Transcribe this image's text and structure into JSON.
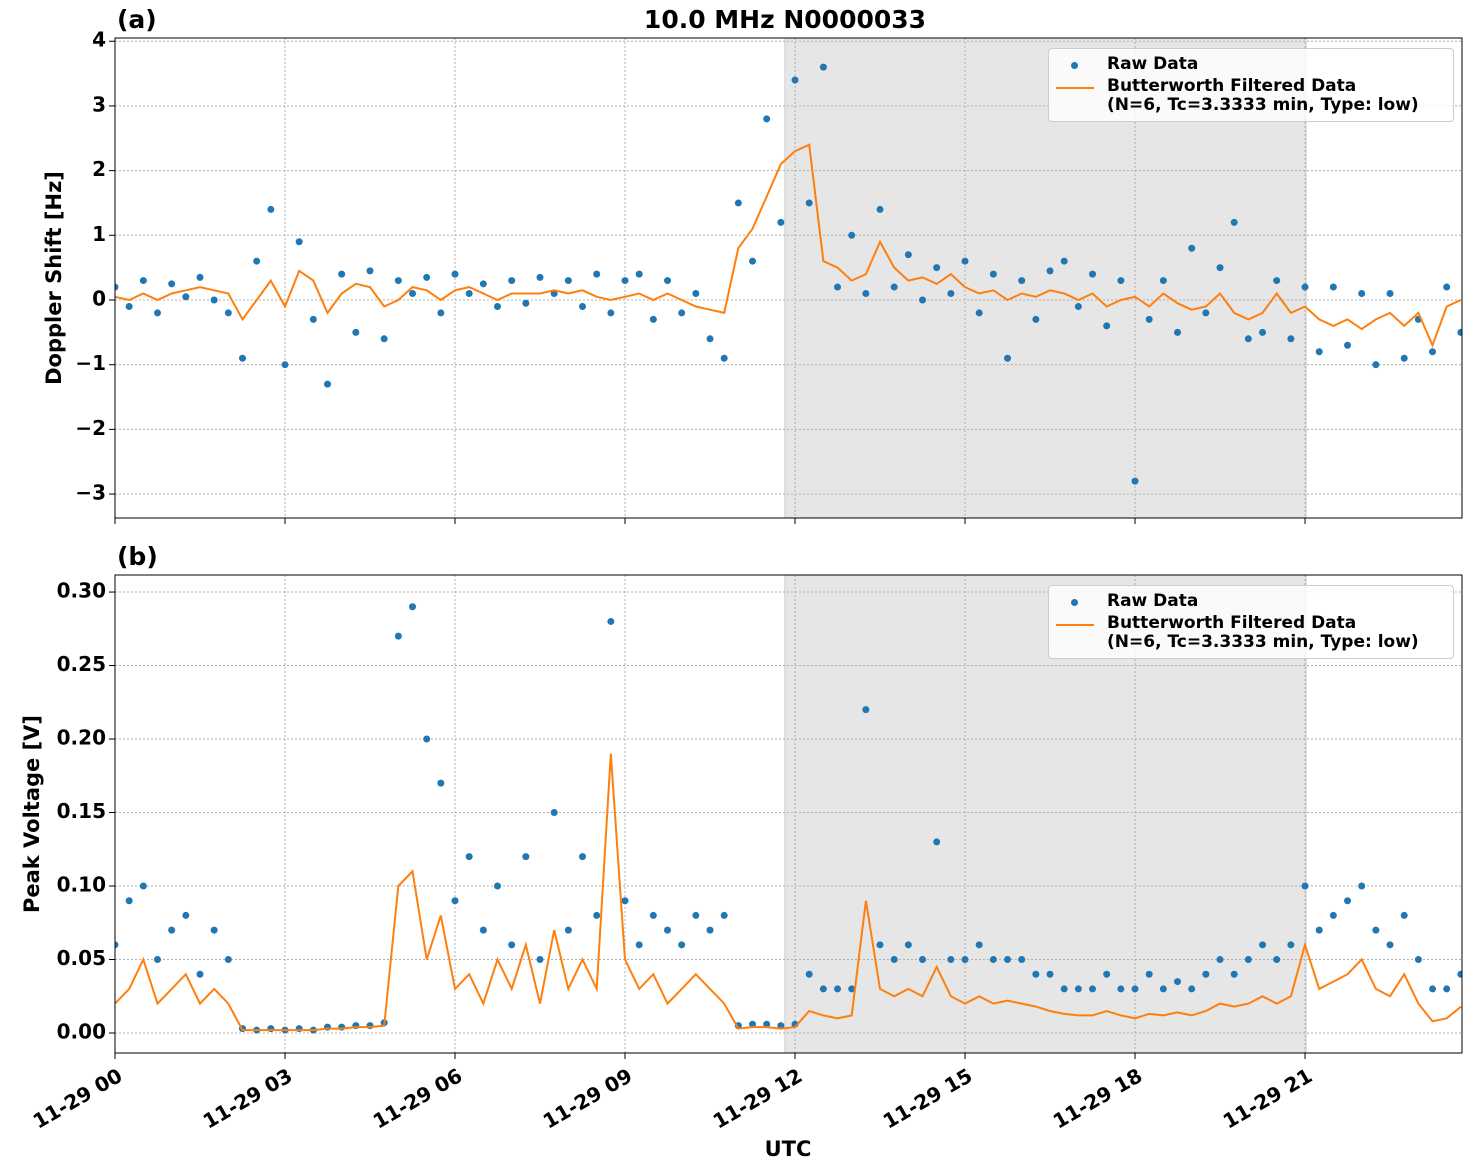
{
  "chart_data": [
    {
      "type": "scatter-line",
      "title": "10.0 MHz N0000033",
      "panel_label": "(a)",
      "ylabel": "Doppler Shift [Hz]",
      "xlim": [
        0,
        23.77
      ],
      "ylim": [
        -3.37,
        4.05
      ],
      "yticks": [
        {
          "value": -3,
          "label": "−3"
        },
        {
          "value": -2,
          "label": "−2"
        },
        {
          "value": -1,
          "label": "−1"
        },
        0,
        1,
        2,
        3,
        4
      ],
      "grid": true,
      "span": [
        11.82,
        21.02
      ],
      "legend": "upper right",
      "x": [
        0,
        0.25,
        0.5,
        0.75,
        1,
        1.25,
        1.5,
        1.75,
        2,
        2.25,
        2.5,
        2.75,
        3,
        3.25,
        3.5,
        3.75,
        4,
        4.25,
        4.5,
        4.75,
        5,
        5.25,
        5.5,
        5.75,
        6,
        6.25,
        6.5,
        6.75,
        7,
        7.25,
        7.5,
        7.75,
        8,
        8.25,
        8.5,
        8.75,
        9,
        9.25,
        9.5,
        9.75,
        10,
        10.25,
        10.5,
        10.75,
        11,
        11.25,
        11.5,
        11.75,
        12,
        12.25,
        12.5,
        12.75,
        13,
        13.25,
        13.5,
        13.75,
        14,
        14.25,
        14.5,
        14.75,
        15,
        15.25,
        15.5,
        15.75,
        16,
        16.25,
        16.5,
        16.75,
        17,
        17.25,
        17.5,
        17.75,
        18,
        18.25,
        18.5,
        18.75,
        19,
        19.25,
        19.5,
        19.75,
        20,
        20.25,
        20.5,
        20.75,
        21,
        21.25,
        21.5,
        21.75,
        22,
        22.25,
        22.5,
        22.75,
        23,
        23.25,
        23.5,
        23.75
      ],
      "series": [
        {
          "name": "Raw Data",
          "color": "#1f77b4",
          "style": "points",
          "values": [
            0.2,
            -0.1,
            0.3,
            -0.2,
            0.25,
            0.05,
            0.35,
            0.0,
            -0.2,
            -0.9,
            0.6,
            1.4,
            -1.0,
            0.9,
            -0.3,
            -1.3,
            0.4,
            -0.5,
            0.45,
            -0.6,
            0.3,
            0.1,
            0.35,
            -0.2,
            0.4,
            0.1,
            0.25,
            -0.1,
            0.3,
            -0.05,
            0.35,
            0.1,
            0.3,
            -0.1,
            0.4,
            -0.2,
            0.3,
            0.4,
            -0.3,
            0.3,
            -0.2,
            0.1,
            -0.6,
            -0.9,
            1.5,
            0.6,
            2.8,
            1.2,
            3.4,
            1.5,
            3.6,
            0.2,
            1.0,
            0.1,
            1.4,
            0.2,
            0.7,
            0.0,
            0.5,
            0.1,
            0.6,
            -0.2,
            0.4,
            -0.9,
            0.3,
            -0.3,
            0.45,
            0.6,
            -0.1,
            0.4,
            -0.4,
            0.3,
            -2.8,
            -0.3,
            0.3,
            -0.5,
            0.8,
            -0.2,
            0.5,
            1.2,
            -0.6,
            -0.5,
            0.3,
            -0.6,
            0.2,
            -0.8,
            0.2,
            -0.7,
            0.1,
            -1.0,
            0.1,
            -0.9,
            -0.3,
            -0.8,
            0.2,
            -0.5
          ]
        },
        {
          "name": "Butterworth Filtered Data\n(N=6, Tc=3.3333 min, Type: low)",
          "color": "#ff7f0e",
          "style": "line",
          "values": [
            0.05,
            0.0,
            0.1,
            0.0,
            0.1,
            0.15,
            0.2,
            0.15,
            0.1,
            -0.3,
            0.0,
            0.3,
            -0.1,
            0.45,
            0.3,
            -0.2,
            0.1,
            0.25,
            0.2,
            -0.1,
            0.0,
            0.2,
            0.15,
            0.0,
            0.15,
            0.2,
            0.1,
            0.0,
            0.1,
            0.1,
            0.1,
            0.15,
            0.1,
            0.15,
            0.05,
            0.0,
            0.05,
            0.1,
            0.0,
            0.1,
            0.0,
            -0.1,
            -0.15,
            -0.2,
            0.8,
            1.1,
            1.6,
            2.1,
            2.3,
            2.4,
            0.6,
            0.5,
            0.3,
            0.4,
            0.9,
            0.5,
            0.3,
            0.35,
            0.25,
            0.4,
            0.2,
            0.1,
            0.15,
            0.0,
            0.1,
            0.05,
            0.15,
            0.1,
            0.0,
            0.1,
            -0.1,
            0.0,
            0.05,
            -0.1,
            0.1,
            -0.05,
            -0.15,
            -0.1,
            0.1,
            -0.2,
            -0.3,
            -0.2,
            0.1,
            -0.2,
            -0.1,
            -0.3,
            -0.4,
            -0.3,
            -0.45,
            -0.3,
            -0.2,
            -0.4,
            -0.2,
            -0.7,
            -0.1,
            0.0
          ]
        }
      ]
    },
    {
      "type": "scatter-line",
      "panel_label": "(b)",
      "ylabel": "Peak Voltage [V]",
      "xlabel": "UTC",
      "xlim": [
        0,
        23.77
      ],
      "ylim": [
        -0.0136,
        0.3116
      ],
      "xticks": [
        {
          "value": 0,
          "label": "11-29 00"
        },
        {
          "value": 3,
          "label": "11-29 03"
        },
        {
          "value": 6,
          "label": "11-29 06"
        },
        {
          "value": 9,
          "label": "11-29 09"
        },
        {
          "value": 12,
          "label": "11-29 12"
        },
        {
          "value": 15,
          "label": "11-29 15"
        },
        {
          "value": 18,
          "label": "11-29 18"
        },
        {
          "value": 21,
          "label": "11-29 21"
        }
      ],
      "yticks": [
        {
          "value": 0,
          "label": "0.00"
        },
        0.05,
        {
          "value": 0.1,
          "label": "0.10"
        },
        0.15,
        {
          "value": 0.2,
          "label": "0.20"
        },
        0.25,
        {
          "value": 0.3,
          "label": "0.30"
        }
      ],
      "grid": true,
      "span": [
        11.82,
        21.02
      ],
      "legend": "upper right",
      "x": [
        0,
        0.25,
        0.5,
        0.75,
        1,
        1.25,
        1.5,
        1.75,
        2,
        2.25,
        2.5,
        2.75,
        3,
        3.25,
        3.5,
        3.75,
        4,
        4.25,
        4.5,
        4.75,
        5,
        5.25,
        5.5,
        5.75,
        6,
        6.25,
        6.5,
        6.75,
        7,
        7.25,
        7.5,
        7.75,
        8,
        8.25,
        8.5,
        8.75,
        9,
        9.25,
        9.5,
        9.75,
        10,
        10.25,
        10.5,
        10.75,
        11,
        11.25,
        11.5,
        11.75,
        12,
        12.25,
        12.5,
        12.75,
        13,
        13.25,
        13.5,
        13.75,
        14,
        14.25,
        14.5,
        14.75,
        15,
        15.25,
        15.5,
        15.75,
        16,
        16.25,
        16.5,
        16.75,
        17,
        17.25,
        17.5,
        17.75,
        18,
        18.25,
        18.5,
        18.75,
        19,
        19.25,
        19.5,
        19.75,
        20,
        20.25,
        20.5,
        20.75,
        21,
        21.25,
        21.5,
        21.75,
        22,
        22.25,
        22.5,
        22.75,
        23,
        23.25,
        23.5,
        23.75
      ],
      "series": [
        {
          "name": "Raw Data",
          "color": "#1f77b4",
          "style": "points",
          "values": [
            0.06,
            0.09,
            0.1,
            0.05,
            0.07,
            0.08,
            0.04,
            0.07,
            0.05,
            0.003,
            0.002,
            0.003,
            0.002,
            0.003,
            0.002,
            0.004,
            0.004,
            0.005,
            0.005,
            0.007,
            0.27,
            0.29,
            0.2,
            0.17,
            0.09,
            0.12,
            0.07,
            0.1,
            0.06,
            0.12,
            0.05,
            0.15,
            0.07,
            0.12,
            0.08,
            0.28,
            0.09,
            0.06,
            0.08,
            0.07,
            0.06,
            0.08,
            0.07,
            0.08,
            0.005,
            0.006,
            0.006,
            0.005,
            0.006,
            0.04,
            0.03,
            0.03,
            0.03,
            0.22,
            0.06,
            0.05,
            0.06,
            0.05,
            0.13,
            0.05,
            0.05,
            0.06,
            0.05,
            0.05,
            0.05,
            0.04,
            0.04,
            0.03,
            0.03,
            0.03,
            0.04,
            0.03,
            0.03,
            0.04,
            0.03,
            0.035,
            0.03,
            0.04,
            0.05,
            0.04,
            0.05,
            0.06,
            0.05,
            0.06,
            0.1,
            0.07,
            0.08,
            0.09,
            0.1,
            0.07,
            0.06,
            0.08,
            0.05,
            0.03,
            0.03,
            0.04
          ]
        },
        {
          "name": "Butterworth Filtered Data\n(N=6, Tc=3.3333 min, Type: low)",
          "color": "#ff7f0e",
          "style": "line",
          "values": [
            0.02,
            0.03,
            0.05,
            0.02,
            0.03,
            0.04,
            0.02,
            0.03,
            0.02,
            0.002,
            0.002,
            0.002,
            0.002,
            0.002,
            0.002,
            0.003,
            0.003,
            0.004,
            0.004,
            0.005,
            0.1,
            0.11,
            0.05,
            0.08,
            0.03,
            0.04,
            0.02,
            0.05,
            0.03,
            0.06,
            0.02,
            0.07,
            0.03,
            0.05,
            0.03,
            0.19,
            0.05,
            0.03,
            0.04,
            0.02,
            0.03,
            0.04,
            0.03,
            0.02,
            0.003,
            0.004,
            0.004,
            0.003,
            0.004,
            0.015,
            0.012,
            0.01,
            0.012,
            0.09,
            0.03,
            0.025,
            0.03,
            0.025,
            0.045,
            0.025,
            0.02,
            0.025,
            0.02,
            0.022,
            0.02,
            0.018,
            0.015,
            0.013,
            0.012,
            0.012,
            0.015,
            0.012,
            0.01,
            0.013,
            0.012,
            0.014,
            0.012,
            0.015,
            0.02,
            0.018,
            0.02,
            0.025,
            0.02,
            0.025,
            0.06,
            0.03,
            0.035,
            0.04,
            0.05,
            0.03,
            0.025,
            0.04,
            0.02,
            0.008,
            0.01,
            0.018
          ]
        }
      ]
    }
  ]
}
